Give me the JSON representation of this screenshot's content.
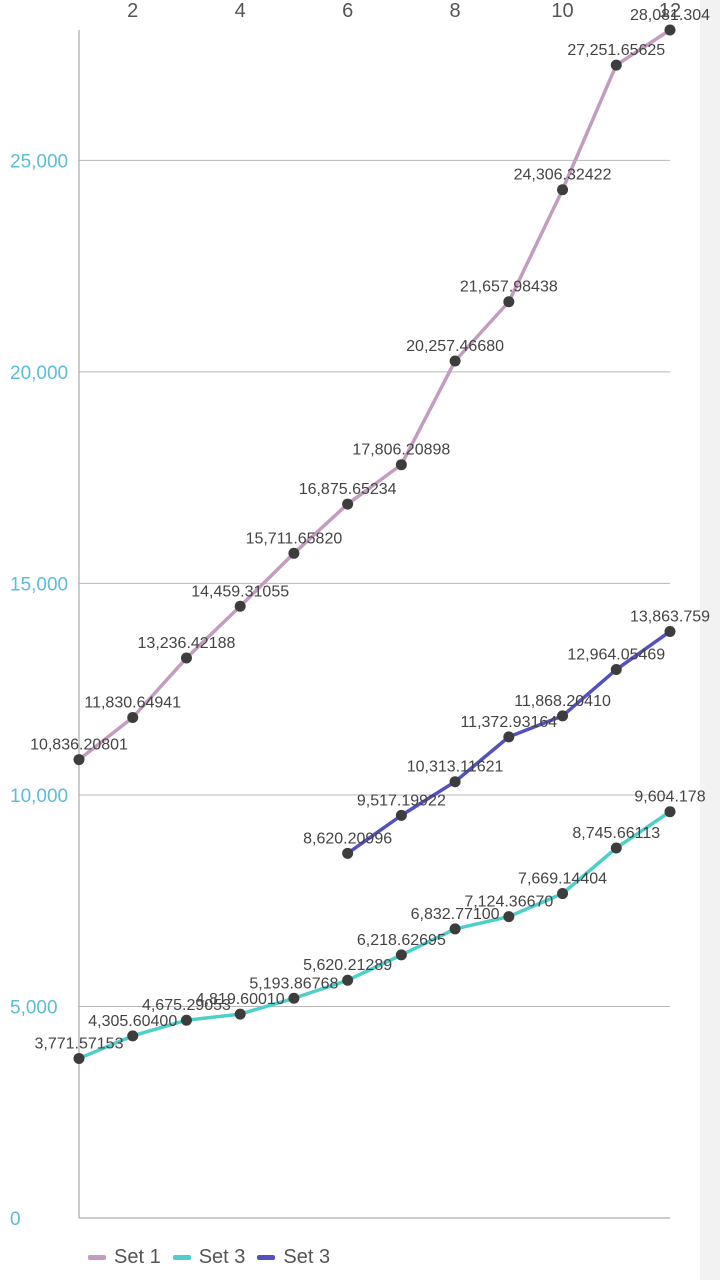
{
  "chart_data": {
    "type": "line",
    "x": [
      1,
      2,
      3,
      4,
      5,
      6,
      7,
      8,
      9,
      10,
      11,
      12
    ],
    "x_ticks": [
      2,
      4,
      6,
      8,
      10,
      12
    ],
    "y_ticks": [
      "0",
      "5,000",
      "10,000",
      "15,000",
      "20,000",
      "25,000"
    ],
    "y_tick_values": [
      0,
      5000,
      10000,
      15000,
      20000,
      25000
    ],
    "xlim": [
      1,
      12
    ],
    "ylim": [
      0,
      28081.3
    ],
    "grid": true,
    "legend_position": "bottom-left",
    "series": [
      {
        "name": "Set 1",
        "color": "#c49cbf",
        "x": [
          1,
          2,
          3,
          4,
          5,
          6,
          7,
          8,
          9,
          10,
          11,
          12
        ],
        "values": [
          10836.20801,
          11830.64941,
          13236.42188,
          14459.31055,
          15711.6582,
          16875.65234,
          17806.20898,
          20257.4668,
          21657.98438,
          24306.32422,
          27251.65625,
          28081.304
        ],
        "labels": [
          "10,836.20801",
          "11,830.64941",
          "13,236.42188",
          "14,459.31055",
          "15,711.65820",
          "16,875.65234",
          "17,806.20898",
          "20,257.46680",
          "21,657.98438",
          "24,306.32422",
          "27,251.65625",
          "28,081.304"
        ]
      },
      {
        "name": "Set 3",
        "color": "#4ecfc9",
        "x": [
          1,
          2,
          3,
          4,
          5,
          6,
          7,
          8,
          9,
          10,
          11,
          12
        ],
        "values": [
          3771.57153,
          4305.604,
          4675.29053,
          4819.6001,
          5193.86768,
          5620.21289,
          6218.62695,
          6832.771,
          7124.3667,
          7669.14404,
          8745.66113,
          9604.178
        ],
        "labels": [
          "3,771.57153",
          "4,305.60400",
          "4,675.29053",
          "4,819.60010",
          "5,193.86768",
          "5,620.21289",
          "6,218.62695",
          "6,832.77100",
          "7,124.36670",
          "7,669.14404",
          "8,745.66113",
          "9,604.178"
        ]
      },
      {
        "name": "Set 3",
        "color": "#5350c0",
        "x": [
          6,
          7,
          8,
          9,
          10,
          11,
          12
        ],
        "values": [
          8620.20996,
          9517.19922,
          10313.11621,
          11372.93164,
          11868.2041,
          12964.05469,
          13863.759
        ],
        "labels": [
          "8,620.20996",
          "9,517.19922",
          "10,313.11621",
          "11,372.93164",
          "11,868.20410",
          "12,964.05469",
          "13,863.759"
        ]
      }
    ]
  }
}
